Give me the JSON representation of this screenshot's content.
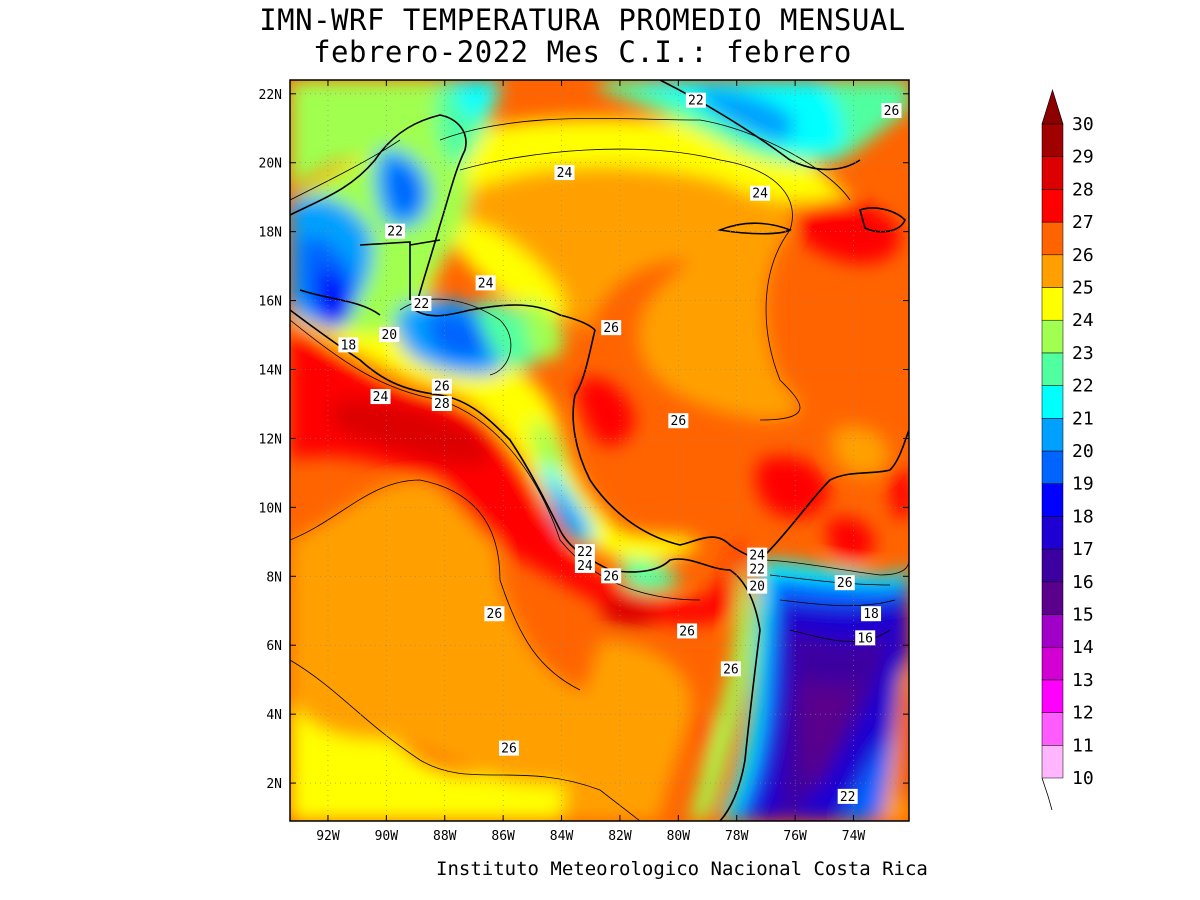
{
  "title": {
    "line1": "IMN-WRF  TEMPERATURA PROMEDIO MENSUAL",
    "line2": "febrero-2022 Mes C.I.: febrero"
  },
  "footer": "Instituto Meteorologico Nacional Costa Rica",
  "map": {
    "lat_range": [
      0.9,
      22.4
    ],
    "lon_range": [
      -93.3,
      -72.1
    ],
    "lat_ticks": [
      "2N",
      "4N",
      "6N",
      "8N",
      "10N",
      "12N",
      "14N",
      "16N",
      "18N",
      "20N",
      "22N"
    ],
    "lon_ticks": [
      "92W",
      "90W",
      "88W",
      "86W",
      "84W",
      "82W",
      "80W",
      "78W",
      "76W",
      "74W"
    ],
    "contour_labels": [
      {
        "text": "22",
        "lon": -79.4,
        "lat": 21.8
      },
      {
        "text": "26",
        "lon": -72.7,
        "lat": 21.5
      },
      {
        "text": "24",
        "lon": -83.9,
        "lat": 19.7
      },
      {
        "text": "24",
        "lon": -77.2,
        "lat": 19.1
      },
      {
        "text": "22",
        "lon": -89.7,
        "lat": 18.0
      },
      {
        "text": "24",
        "lon": -86.6,
        "lat": 16.5
      },
      {
        "text": "22",
        "lon": -88.8,
        "lat": 15.9
      },
      {
        "text": "26",
        "lon": -82.3,
        "lat": 15.2
      },
      {
        "text": "20",
        "lon": -89.9,
        "lat": 15.0
      },
      {
        "text": "18",
        "lon": -91.3,
        "lat": 14.7
      },
      {
        "text": "26",
        "lon": -88.1,
        "lat": 13.5
      },
      {
        "text": "24",
        "lon": -90.2,
        "lat": 13.2
      },
      {
        "text": "28",
        "lon": -88.1,
        "lat": 13.0
      },
      {
        "text": "26",
        "lon": -80.0,
        "lat": 12.5
      },
      {
        "text": "22",
        "lon": -83.2,
        "lat": 8.7
      },
      {
        "text": "24",
        "lon": -77.3,
        "lat": 8.6
      },
      {
        "text": "24",
        "lon": -83.2,
        "lat": 8.3
      },
      {
        "text": "22",
        "lon": -77.3,
        "lat": 8.2
      },
      {
        "text": "26",
        "lon": -82.3,
        "lat": 8.0
      },
      {
        "text": "20",
        "lon": -77.3,
        "lat": 7.7
      },
      {
        "text": "26",
        "lon": -74.3,
        "lat": 7.8
      },
      {
        "text": "26",
        "lon": -86.3,
        "lat": 6.9
      },
      {
        "text": "18",
        "lon": -73.4,
        "lat": 6.9
      },
      {
        "text": "26",
        "lon": -79.7,
        "lat": 6.4
      },
      {
        "text": "16",
        "lon": -73.6,
        "lat": 6.2
      },
      {
        "text": "26",
        "lon": -78.2,
        "lat": 5.3
      },
      {
        "text": "26",
        "lon": -85.8,
        "lat": 3.0
      },
      {
        "text": "22",
        "lon": -74.2,
        "lat": 1.6
      }
    ]
  },
  "colorbar": {
    "labels": [
      "30",
      "29",
      "28",
      "27",
      "26",
      "25",
      "24",
      "23",
      "22",
      "21",
      "20",
      "19",
      "18",
      "17",
      "16",
      "15",
      "14",
      "13",
      "12",
      "11",
      "10"
    ],
    "colors": [
      "#ffb6ff",
      "#ff5cff",
      "#ff00ff",
      "#d200d2",
      "#a000c8",
      "#5a008c",
      "#3c00a0",
      "#1e00d2",
      "#0000ff",
      "#0064ff",
      "#00a0ff",
      "#00ffff",
      "#50ffa0",
      "#a0ff50",
      "#ffff00",
      "#ffa000",
      "#ff6400",
      "#ff0000",
      "#dc0000",
      "#a00000"
    ],
    "top_arrow_color": "#8c0000"
  }
}
